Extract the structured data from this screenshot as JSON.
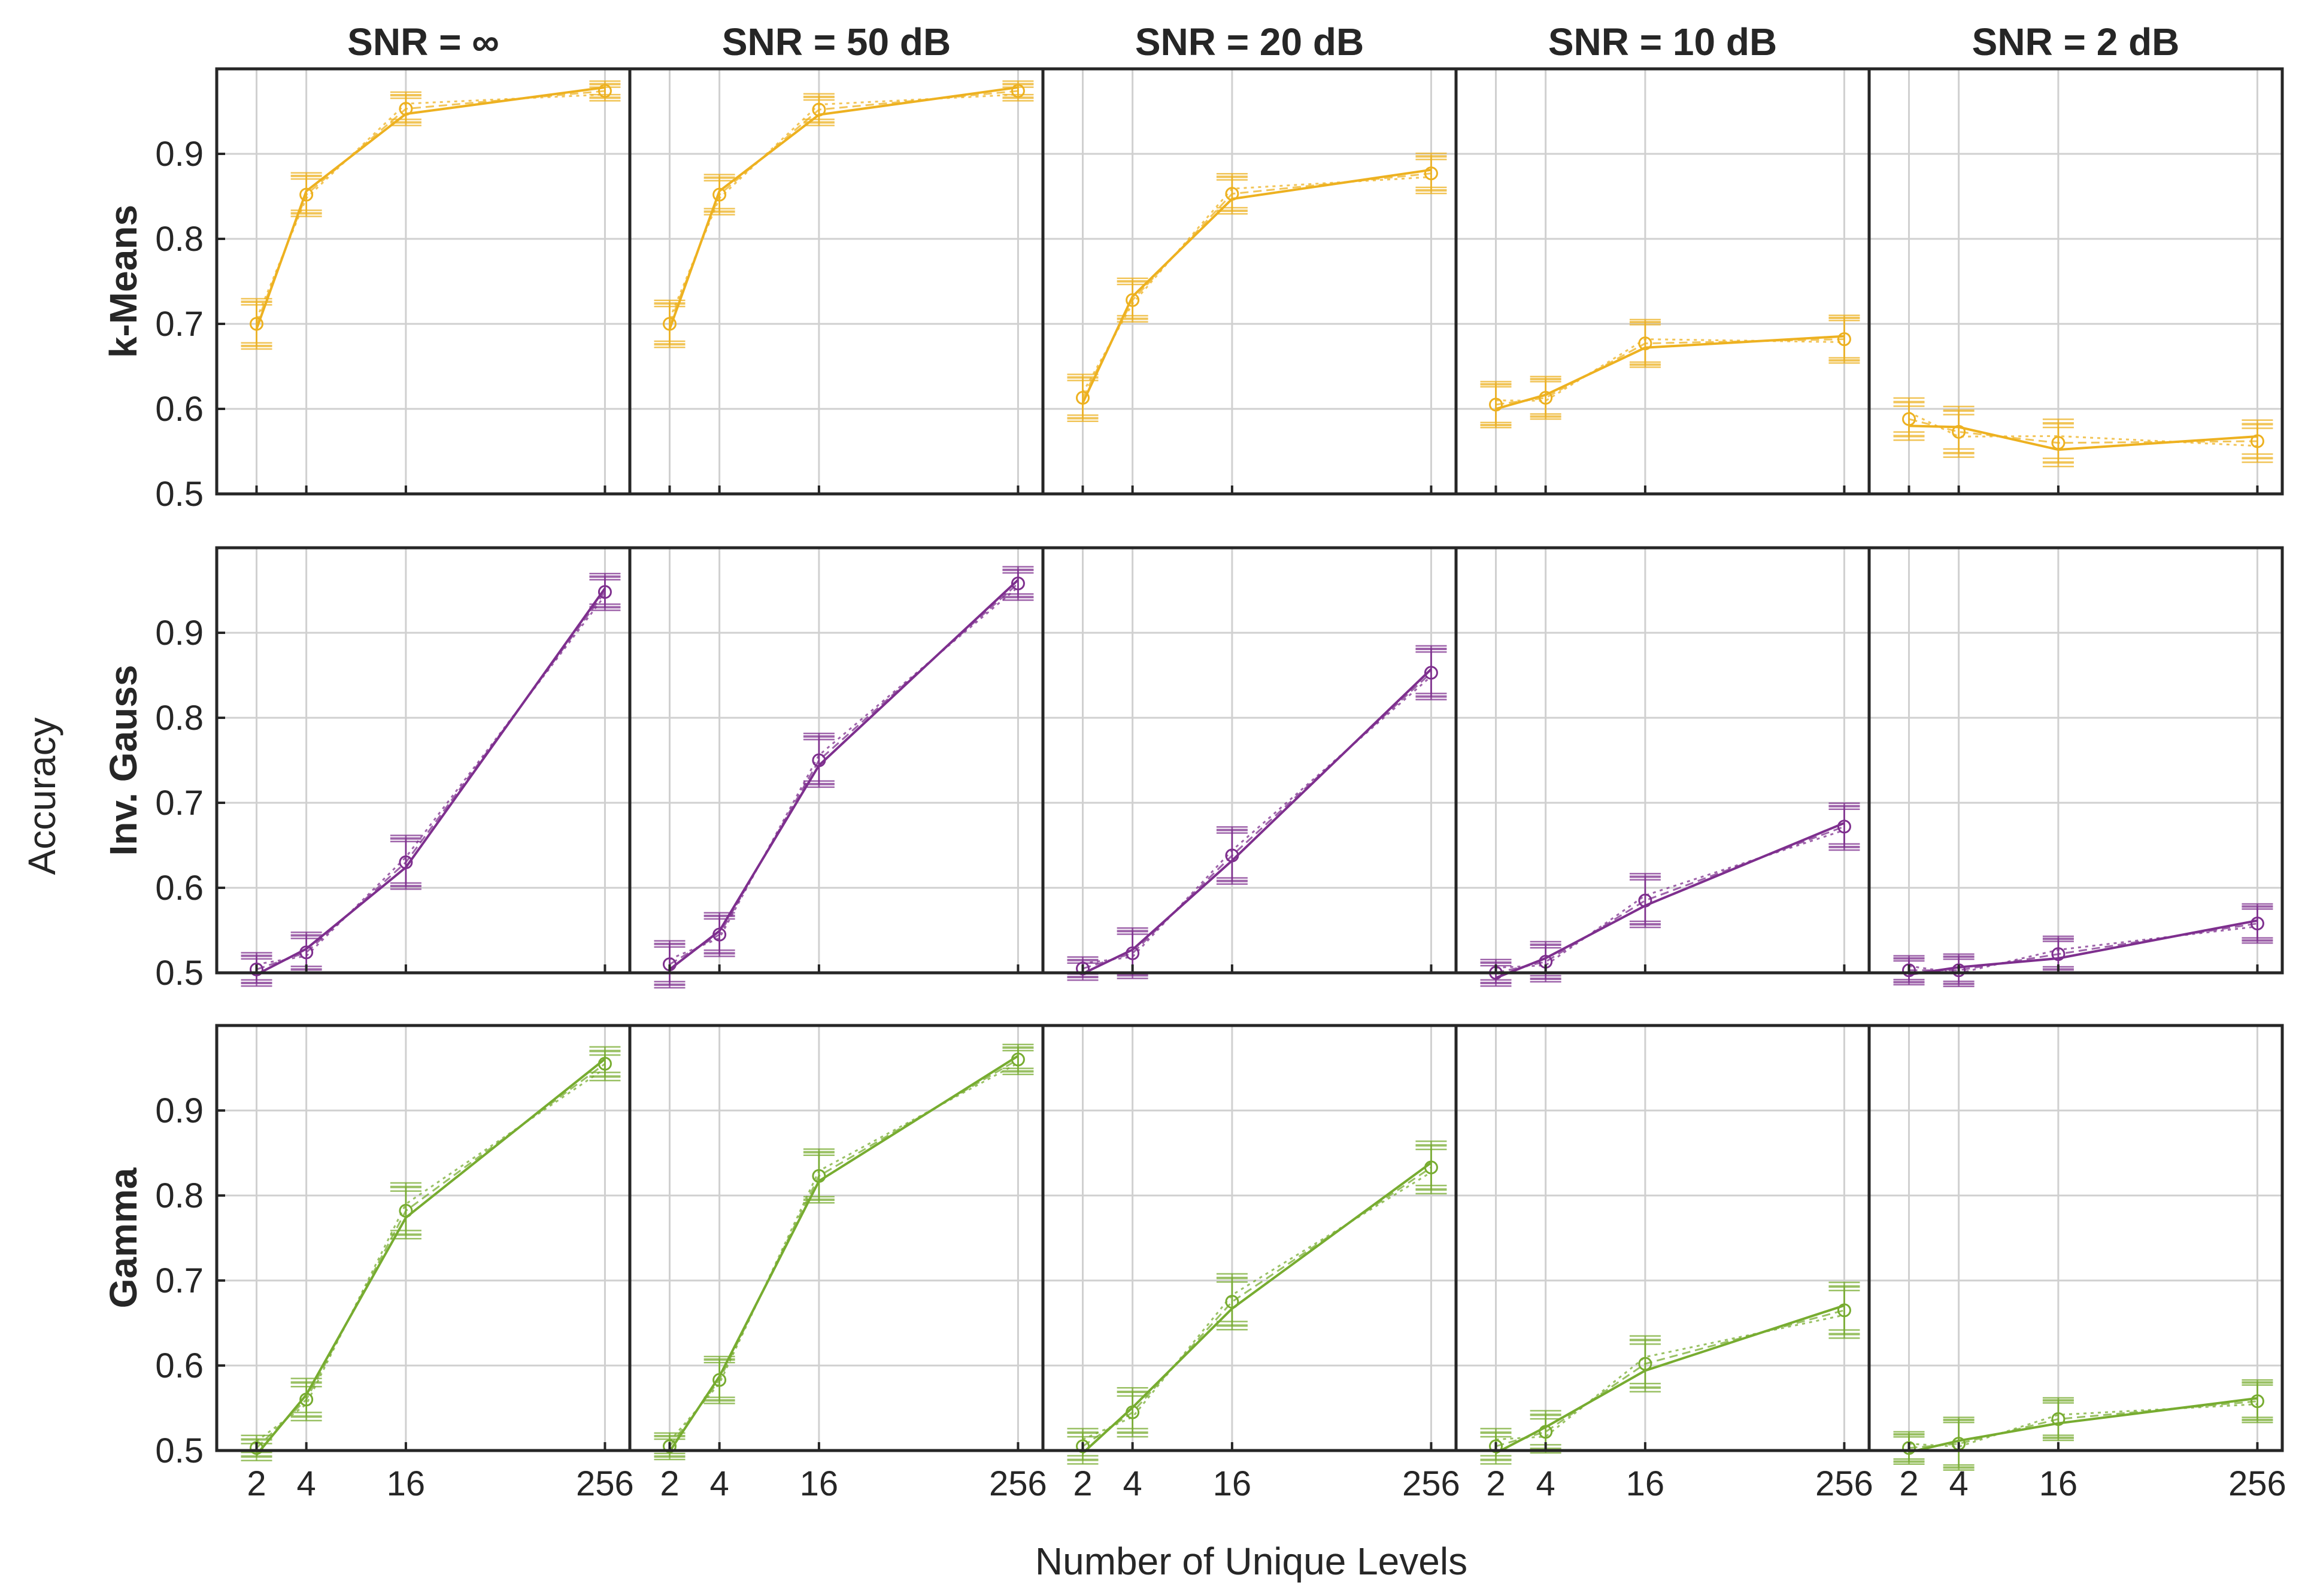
{
  "chart_data": {
    "type": "line",
    "x_label": "Number of Unique Levels",
    "y_label": "Accuracy",
    "x_categories": [
      "2",
      "4",
      "16",
      "256"
    ],
    "x_log2": [
      1,
      2,
      4,
      8
    ],
    "y_range": [
      0.5,
      1.0
    ],
    "y_ticks": [
      "0.5",
      "0.6",
      "0.7",
      "0.8",
      "0.9"
    ],
    "y_tick_values": [
      0.5,
      0.6,
      0.7,
      0.8,
      0.9
    ],
    "grid": true,
    "columns": [
      "SNR = ∞",
      "SNR = 50 dB",
      "SNR = 20 dB",
      "SNR = 10 dB",
      "SNR = 2 dB"
    ],
    "rows": [
      {
        "name": "k-Means",
        "color": "#EDB120",
        "panels": [
          {
            "values": [
              0.7,
              0.852,
              0.953,
              0.974
            ],
            "errors": [
              0.026,
              0.022,
              0.016,
              0.008
            ],
            "spread": 0.006
          },
          {
            "values": [
              0.7,
              0.852,
              0.952,
              0.974
            ],
            "errors": [
              0.024,
              0.02,
              0.015,
              0.008
            ],
            "spread": 0.006
          },
          {
            "values": [
              0.613,
              0.728,
              0.853,
              0.877
            ],
            "errors": [
              0.024,
              0.022,
              0.02,
              0.02
            ],
            "spread": 0.006
          },
          {
            "values": [
              0.605,
              0.613,
              0.677,
              0.682
            ],
            "errors": [
              0.024,
              0.022,
              0.025,
              0.025
            ],
            "spread": 0.005
          },
          {
            "values": [
              0.588,
              0.573,
              0.56,
              0.562
            ],
            "errors": [
              0.02,
              0.025,
              0.023,
              0.02
            ],
            "spread": 0.008
          }
        ]
      },
      {
        "name": "Inv. Gauss",
        "color": "#7E2F8E",
        "panels": [
          {
            "values": [
              0.504,
              0.524,
              0.63,
              0.948
            ],
            "errors": [
              0.016,
              0.02,
              0.028,
              0.018
            ],
            "spread": 0.006
          },
          {
            "values": [
              0.51,
              0.545,
              0.75,
              0.958
            ],
            "errors": [
              0.024,
              0.022,
              0.028,
              0.016
            ],
            "spread": 0.006
          },
          {
            "values": [
              0.505,
              0.523,
              0.638,
              0.853
            ],
            "errors": [
              0.01,
              0.026,
              0.03,
              0.028
            ],
            "spread": 0.006
          },
          {
            "values": [
              0.5,
              0.513,
              0.585,
              0.672
            ],
            "errors": [
              0.012,
              0.02,
              0.028,
              0.024
            ],
            "spread": 0.006
          },
          {
            "values": [
              0.503,
              0.503,
              0.522,
              0.558
            ],
            "errors": [
              0.014,
              0.016,
              0.018,
              0.02
            ],
            "spread": 0.005
          }
        ]
      },
      {
        "name": "Gamma",
        "color": "#77AC30",
        "panels": [
          {
            "values": [
              0.503,
              0.56,
              0.782,
              0.955
            ],
            "errors": [
              0.01,
              0.02,
              0.028,
              0.015
            ],
            "spread": 0.008
          },
          {
            "values": [
              0.505,
              0.583,
              0.823,
              0.96
            ],
            "errors": [
              0.012,
              0.024,
              0.028,
              0.014
            ],
            "spread": 0.006
          },
          {
            "values": [
              0.505,
              0.545,
              0.675,
              0.833
            ],
            "errors": [
              0.016,
              0.024,
              0.028,
              0.026
            ],
            "spread": 0.008
          },
          {
            "values": [
              0.505,
              0.522,
              0.602,
              0.665
            ],
            "errors": [
              0.016,
              0.02,
              0.028,
              0.028
            ],
            "spread": 0.008
          },
          {
            "values": [
              0.503,
              0.508,
              0.537,
              0.558
            ],
            "errors": [
              0.016,
              0.028,
              0.022,
              0.022
            ],
            "spread": 0.005
          }
        ]
      }
    ]
  }
}
